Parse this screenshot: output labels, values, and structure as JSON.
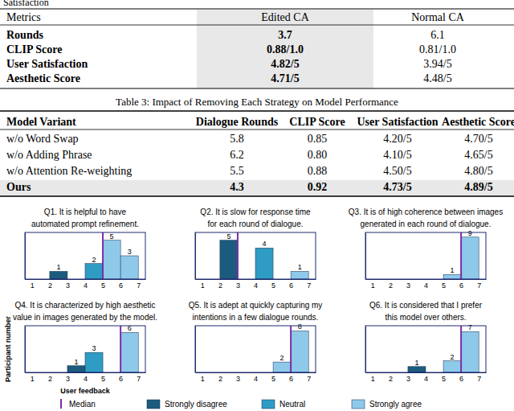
{
  "fragment": "Satisfaction",
  "tables": [
    {
      "header": [
        "Metrics",
        "Edited CA",
        "Normal CA"
      ],
      "rows": [
        [
          "Rounds",
          "3.7",
          "6.1"
        ],
        [
          "CLIP Score",
          "0.88/1.0",
          "0.81/1.0"
        ],
        [
          "User Satisfaction",
          "4.82/5",
          "3.94/5"
        ],
        [
          "Aesthetic Score",
          "4.71/5",
          "4.48/5"
        ]
      ]
    },
    {
      "caption": "Table 3: Impact of Removing Each Strategy on Model Performance",
      "header": [
        "Model Variant",
        "Dialogue Rounds",
        "CLIP Score",
        "User Satisfaction",
        "Aesthetic Score"
      ],
      "rows": [
        [
          "w/o Word Swap",
          "5.8",
          "0.85",
          "4.20/5",
          "4.70/5"
        ],
        [
          "w/o Adding Phrase",
          "6.2",
          "0.80",
          "4.10/5",
          "4.65/5"
        ],
        [
          "w/o Attention Re-weighting",
          "5.5",
          "0.88",
          "4.50/5",
          "4.80/5"
        ],
        [
          "Ours",
          "4.3",
          "0.92",
          "4.73/5",
          "4.89/5"
        ]
      ]
    }
  ],
  "legend_entries": [
    {
      "name": "Median",
      "color": "#7a2fa8"
    },
    {
      "name": "Strongly disagree",
      "color": "#1b5c7e"
    },
    {
      "name": "Neutral",
      "color": "#2f9cc4"
    },
    {
      "name": "Strongly agree",
      "color": "#8ec9ea"
    }
  ],
  "chart_data": [
    {
      "type": "histogram",
      "title": [
        "Q1. It is helpful to have",
        "automated prompt refinement."
      ],
      "bins": [
        1,
        2,
        3,
        4,
        5,
        6,
        7
      ],
      "values": [
        0,
        1,
        0,
        2,
        5,
        3
      ],
      "colors": [
        "#1b5c7e",
        "#1b5c7e",
        "#1b5c7e",
        "#2f9cc4",
        "#8ec9ea",
        "#8ec9ea"
      ],
      "median": 5,
      "xlim": [
        0.6,
        7.4
      ],
      "xticks": [
        1,
        2,
        3,
        4,
        5,
        6,
        7
      ],
      "ylim": [
        0,
        6
      ],
      "data_labels": true,
      "tick_labels": "x"
    },
    {
      "type": "histogram",
      "title": [
        "Q2. It is slow for response time",
        "for each round of dialogue."
      ],
      "bins": [
        1,
        2,
        3,
        4,
        5,
        6,
        7
      ],
      "values": [
        0,
        5,
        0,
        4,
        0,
        1
      ],
      "colors": [
        "#1b5c7e",
        "#1b5c7e",
        "#1b5c7e",
        "#2f9cc4",
        "#8ec9ea",
        "#8ec9ea"
      ],
      "median": 3,
      "xlim": [
        0.6,
        7.4
      ],
      "xticks": [
        1,
        2,
        3,
        4,
        5,
        6,
        7
      ],
      "ylim": [
        0,
        6
      ],
      "data_labels": true,
      "tick_labels": "x"
    },
    {
      "type": "histogram",
      "title": [
        "Q3. It is of high coherence between images",
        "generated in each round of dialogue."
      ],
      "bins": [
        1,
        2,
        3,
        4,
        5,
        6,
        7
      ],
      "values": [
        0,
        0,
        0,
        0,
        1,
        9
      ],
      "colors": [
        "#1b5c7e",
        "#1b5c7e",
        "#1b5c7e",
        "#2f9cc4",
        "#8ec9ea",
        "#8ec9ea"
      ],
      "median": 6,
      "xlim": [
        0.6,
        7.4
      ],
      "xticks": [
        1,
        2,
        3,
        4,
        5,
        6,
        7
      ],
      "ylim": [
        0,
        10
      ],
      "data_labels": true,
      "tick_labels": "x"
    },
    {
      "type": "histogram",
      "title": [
        "Q4. It is characterized by high aesthetic",
        "value in images generated by the model."
      ],
      "bins": [
        1,
        2,
        3,
        4,
        5,
        6,
        7
      ],
      "values": [
        0,
        0,
        1,
        3,
        0,
        6
      ],
      "colors": [
        "#1b5c7e",
        "#1b5c7e",
        "#1b5c7e",
        "#2f9cc4",
        "#8ec9ea",
        "#8ec9ea"
      ],
      "median": 6,
      "xlim": [
        0.6,
        7.4
      ],
      "xticks": [
        1,
        2,
        3,
        4,
        5,
        6,
        7
      ],
      "ylim": [
        0,
        7
      ],
      "x_label": "User feedback",
      "y_label": "Participant number",
      "data_labels": true,
      "tick_labels": "x"
    },
    {
      "type": "histogram",
      "title": [
        "Q5. It is adept at quickly capturing my",
        "intentions in a few dialogue rounds."
      ],
      "bins": [
        1,
        2,
        3,
        4,
        5,
        6,
        7
      ],
      "values": [
        0,
        0,
        0,
        0,
        2,
        8
      ],
      "colors": [
        "#1b5c7e",
        "#1b5c7e",
        "#1b5c7e",
        "#2f9cc4",
        "#8ec9ea",
        "#8ec9ea"
      ],
      "median": 6,
      "xlim": [
        0.6,
        7.4
      ],
      "xticks": [
        1,
        2,
        3,
        4,
        5,
        6,
        7
      ],
      "ylim": [
        0,
        9
      ],
      "data_labels": true,
      "tick_labels": "x"
    },
    {
      "type": "histogram",
      "title": [
        "Q6. It is considered that I prefer",
        "this model over others."
      ],
      "bins": [
        1,
        2,
        3,
        4,
        5,
        6,
        7
      ],
      "values": [
        0,
        0,
        1,
        0,
        2,
        7
      ],
      "colors": [
        "#1b5c7e",
        "#1b5c7e",
        "#1b5c7e",
        "#2f9cc4",
        "#8ec9ea",
        "#8ec9ea"
      ],
      "median": 6,
      "xlim": [
        0.6,
        7.4
      ],
      "xticks": [
        1,
        2,
        3,
        4,
        5,
        6,
        7
      ],
      "ylim": [
        0,
        8
      ],
      "data_labels": true,
      "tick_labels": "x"
    }
  ]
}
